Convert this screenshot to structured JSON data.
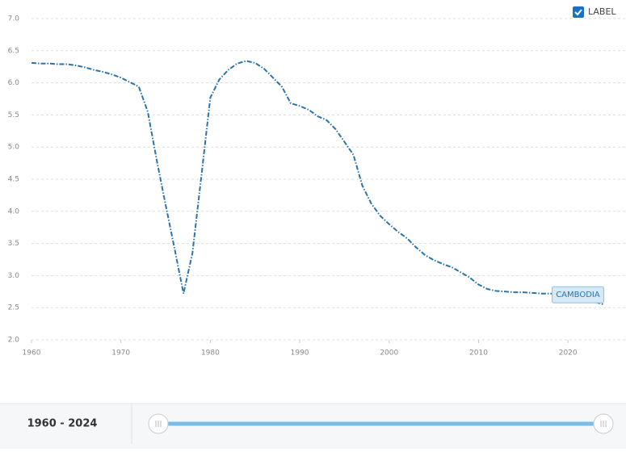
{
  "chart_data": {
    "type": "line",
    "x": [
      1960,
      1961,
      1962,
      1963,
      1964,
      1965,
      1966,
      1967,
      1968,
      1969,
      1970,
      1971,
      1972,
      1973,
      1974,
      1975,
      1976,
      1977,
      1978,
      1979,
      1980,
      1981,
      1982,
      1983,
      1984,
      1985,
      1986,
      1987,
      1988,
      1989,
      1990,
      1991,
      1992,
      1993,
      1994,
      1995,
      1996,
      1997,
      1998,
      1999,
      2000,
      2001,
      2002,
      2003,
      2004,
      2005,
      2006,
      2007,
      2008,
      2009,
      2010,
      2011,
      2012,
      2013,
      2014,
      2015,
      2016,
      2017,
      2018,
      2019,
      2020,
      2021,
      2022,
      2023,
      2024
    ],
    "series": [
      {
        "name": "CAMBODIA",
        "color": "#2b73ad",
        "values": [
          6.31,
          6.3,
          6.3,
          6.29,
          6.29,
          6.27,
          6.24,
          6.2,
          6.17,
          6.13,
          6.08,
          6.01,
          5.94,
          5.55,
          4.8,
          4.1,
          3.42,
          2.72,
          3.35,
          4.55,
          5.77,
          6.05,
          6.2,
          6.3,
          6.34,
          6.31,
          6.22,
          6.08,
          5.94,
          5.68,
          5.64,
          5.58,
          5.48,
          5.42,
          5.28,
          5.08,
          4.88,
          4.4,
          4.12,
          3.93,
          3.8,
          3.68,
          3.58,
          3.44,
          3.32,
          3.24,
          3.18,
          3.13,
          3.05,
          2.97,
          2.86,
          2.79,
          2.76,
          2.75,
          2.74,
          2.74,
          2.73,
          2.72,
          2.72,
          2.72,
          2.71,
          2.69,
          2.64,
          2.59,
          2.55
        ]
      }
    ],
    "xlim": [
      1960,
      2026
    ],
    "xticks": [
      1960,
      1970,
      1980,
      1990,
      2000,
      2010,
      2020
    ],
    "ylim": [
      2,
      7
    ],
    "yticks": [
      {
        "value": 2,
        "label": "2.0"
      },
      {
        "value": 2.5,
        "label": "2.5"
      },
      {
        "value": 3,
        "label": "3.0"
      },
      {
        "value": 3.5,
        "label": "3.5"
      },
      {
        "value": 4,
        "label": "4.0"
      },
      {
        "value": 4.5,
        "label": "4.5"
      },
      {
        "value": 5,
        "label": "5.0"
      },
      {
        "value": 5.5,
        "label": "5.5"
      },
      {
        "value": 6,
        "label": "6.0"
      },
      {
        "value": 6.5,
        "label": "6.5"
      },
      {
        "value": 7,
        "label": "7.0"
      }
    ],
    "grid": true
  },
  "controls": {
    "label_toggle": "LABEL",
    "range": "1960 - 2024"
  }
}
